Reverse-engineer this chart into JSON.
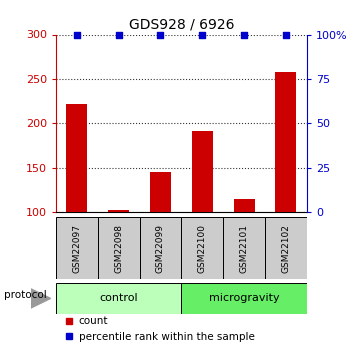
{
  "title": "GDS928 / 6926",
  "samples": [
    "GSM22097",
    "GSM22098",
    "GSM22099",
    "GSM22100",
    "GSM22101",
    "GSM22102"
  ],
  "counts": [
    222,
    103,
    145,
    191,
    115,
    258
  ],
  "percentile_ranks": [
    100,
    100,
    100,
    100,
    100,
    100
  ],
  "ylim_left": [
    100,
    300
  ],
  "ylim_right": [
    0,
    100
  ],
  "yticks_left": [
    100,
    150,
    200,
    250,
    300
  ],
  "yticks_right": [
    0,
    25,
    50,
    75,
    100
  ],
  "ytick_labels_right": [
    "0",
    "25",
    "50",
    "75",
    "100%"
  ],
  "bar_color": "#cc0000",
  "dot_color": "#0000cc",
  "grid_color": "#000000",
  "control_label": "control",
  "microgravity_label": "microgravity",
  "protocol_label": "protocol",
  "legend_count": "count",
  "legend_percentile": "percentile rank within the sample",
  "control_color": "#bbffbb",
  "microgravity_color": "#66ee66",
  "sample_box_color": "#cccccc",
  "left_axis_color": "#cc0000",
  "right_axis_color": "#0000cc",
  "bar_width": 0.5
}
